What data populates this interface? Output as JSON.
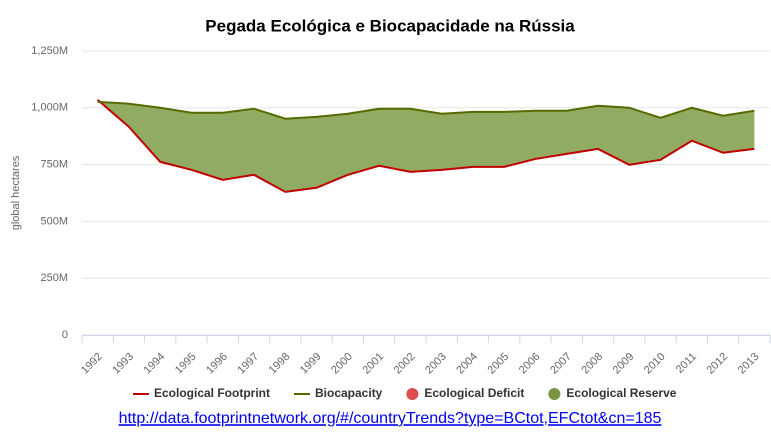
{
  "chart_data": {
    "type": "line",
    "title": "Pegada Ecológica e Biocapacidade na Rússia",
    "y_label": "global hectares",
    "categories": [
      "1992",
      "1993",
      "1994",
      "1995",
      "1996",
      "1997",
      "1998",
      "1999",
      "2000",
      "2001",
      "2002",
      "2003",
      "2004",
      "2005",
      "2006",
      "2007",
      "2008",
      "2009",
      "2010",
      "2011",
      "2012",
      "2013"
    ],
    "series": [
      {
        "name": "Ecological Footprint",
        "color": "#c00000",
        "values": [
          1035,
          916,
          762,
          727,
          683,
          705,
          630,
          648,
          705,
          745,
          718,
          727,
          740,
          740,
          775,
          797,
          819,
          749,
          771,
          855,
          802,
          819
        ]
      },
      {
        "name": "Biocapacity",
        "color": "#556b00",
        "values": [
          1026,
          1018,
          1000,
          978,
          978,
          996,
          952,
          960,
          974,
          996,
          996,
          974,
          982,
          982,
          987,
          987,
          1009,
          1000,
          956,
          1000,
          965,
          987
        ]
      }
    ],
    "legend_extra": [
      {
        "name": "Ecological Deficit",
        "color": "#e04a4a"
      },
      {
        "name": "Ecological Reserve",
        "color": "#7a9440"
      }
    ],
    "area_color": "#8ca65a",
    "ylim": [
      0,
      1250
    ],
    "yticks": [
      0,
      {
        "value": 250,
        "label": "250M"
      },
      {
        "value": 500,
        "label": "500M"
      },
      {
        "value": 750,
        "label": "750M"
      },
      {
        "value": 1000,
        "label": "1,000M"
      },
      {
        "value": 1250,
        "label": "1,250M"
      }
    ],
    "grid": true,
    "source_link": "http://data.footprintnetwork.org/#/countryTrends?type=BCtot,EFCtot&cn=185"
  }
}
